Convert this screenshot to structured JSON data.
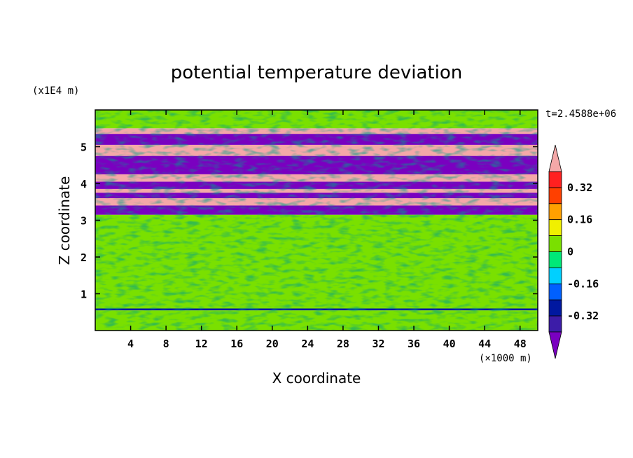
{
  "chart_data": {
    "type": "heatmap",
    "title": "potential temperature deviation",
    "xlabel": "X coordinate",
    "ylabel": "Z coordinate",
    "x_unit": "(×1000 m)",
    "y_unit": "(x1E4 m)",
    "time_label": "t=2.4588e+06",
    "xlim": [
      0,
      50
    ],
    "ylim": [
      0,
      6
    ],
    "x_ticks": [
      "4",
      "8",
      "12",
      "16",
      "20",
      "24",
      "28",
      "32",
      "36",
      "40",
      "44",
      "48"
    ],
    "y_ticks": [
      "1",
      "2",
      "3",
      "4",
      "5"
    ],
    "colorbar": {
      "levels": [
        -0.4,
        -0.32,
        -0.24,
        -0.16,
        -0.08,
        0,
        0.08,
        0.16,
        0.24,
        0.32,
        0.4
      ],
      "colors": [
        "#7a00c0",
        "#3c1ca8",
        "#0018a0",
        "#0060ff",
        "#00d0ff",
        "#00e878",
        "#7ae000",
        "#f0f000",
        "#ffa000",
        "#ff4000",
        "#ff2020",
        "#f4a8a8"
      ],
      "tick_labels": [
        "0.32",
        "0.16",
        "0",
        "-0.16",
        "-0.32"
      ]
    },
    "bands": [
      {
        "z0": 0.0,
        "z1": 0.55,
        "value": 0.04
      },
      {
        "z0": 0.55,
        "z1": 0.6,
        "value": -0.3
      },
      {
        "z0": 0.6,
        "z1": 3.15,
        "value": 0.04
      },
      {
        "z0": 3.15,
        "z1": 3.4,
        "value": -0.5
      },
      {
        "z0": 3.4,
        "z1": 3.6,
        "value": 0.5
      },
      {
        "z0": 3.6,
        "z1": 3.75,
        "value": -0.5
      },
      {
        "z0": 3.75,
        "z1": 3.85,
        "value": 0.5
      },
      {
        "z0": 3.85,
        "z1": 4.05,
        "value": -0.5
      },
      {
        "z0": 4.05,
        "z1": 4.25,
        "value": 0.5
      },
      {
        "z0": 4.25,
        "z1": 4.75,
        "value": -0.5
      },
      {
        "z0": 4.75,
        "z1": 5.05,
        "value": 0.5
      },
      {
        "z0": 5.05,
        "z1": 5.35,
        "value": -0.5
      },
      {
        "z0": 5.35,
        "z1": 5.5,
        "value": 0.5
      },
      {
        "z0": 5.5,
        "z1": 6.0,
        "value": 0.04
      }
    ]
  }
}
